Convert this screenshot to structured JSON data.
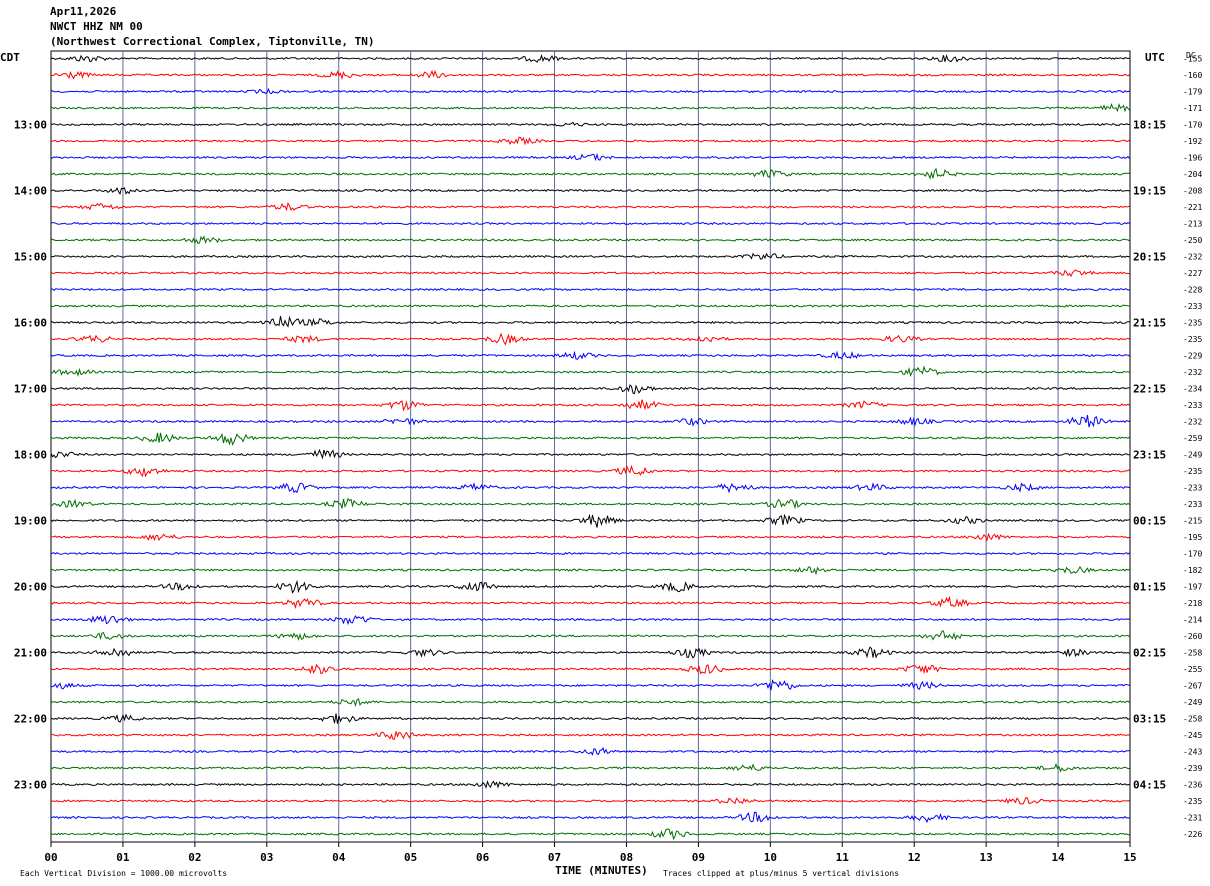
{
  "header": {
    "date": "Apr11,2026",
    "station": "NWCT HHZ NM 00",
    "location": "(Northwest Correctional Complex, Tiptonville, TN)"
  },
  "left_timezone": "CDT",
  "right_timezone": "UTC",
  "dc_label": "DC",
  "footer": {
    "scale_note": "Each Vertical Division = 1000.00 microvolts",
    "x_axis_label": "TIME (MINUTES)",
    "clip_note": "Traces clipped at plus/minus 5 vertical divisions"
  },
  "chart_data": {
    "type": "line",
    "description_of_axes": "helicorder",
    "x_tick_labels": [
      "00",
      "01",
      "02",
      "03",
      "04",
      "05",
      "06",
      "07",
      "08",
      "09",
      "10",
      "11",
      "12",
      "13",
      "14",
      "15"
    ],
    "x_range_minutes": [
      0,
      15
    ],
    "trace_colors": [
      "#000000",
      "#ff0000",
      "#0000ff",
      "#007000"
    ],
    "grid": true,
    "left_hour_labels": [
      {
        "row": 4,
        "label": "13:00"
      },
      {
        "row": 8,
        "label": "14:00"
      },
      {
        "row": 12,
        "label": "15:00"
      },
      {
        "row": 16,
        "label": "16:00"
      },
      {
        "row": 20,
        "label": "17:00"
      },
      {
        "row": 24,
        "label": "18:00"
      },
      {
        "row": 28,
        "label": "19:00"
      },
      {
        "row": 32,
        "label": "20:00"
      },
      {
        "row": 36,
        "label": "21:00"
      },
      {
        "row": 40,
        "label": "22:00"
      },
      {
        "row": 44,
        "label": "23:00"
      }
    ],
    "right_hour_labels": [
      {
        "row": 4,
        "label": "18:15"
      },
      {
        "row": 8,
        "label": "19:15"
      },
      {
        "row": 12,
        "label": "20:15"
      },
      {
        "row": 16,
        "label": "21:15"
      },
      {
        "row": 20,
        "label": "22:15"
      },
      {
        "row": 24,
        "label": "23:15"
      },
      {
        "row": 28,
        "label": "00:15"
      },
      {
        "row": 32,
        "label": "01:15"
      },
      {
        "row": 36,
        "label": "02:15"
      },
      {
        "row": 40,
        "label": "03:15"
      },
      {
        "row": 44,
        "label": "04:15"
      }
    ],
    "dc_offsets": [
      -155,
      -160,
      -179,
      -171,
      -170,
      -192,
      -196,
      -204,
      -208,
      -221,
      -213,
      -250,
      -232,
      -227,
      -228,
      -233,
      -235,
      -235,
      -229,
      -232,
      -234,
      -233,
      -232,
      -259,
      -249,
      -235,
      -233,
      -233,
      -215,
      -195,
      -170,
      -182,
      -197,
      -218,
      -214,
      -260,
      -258,
      -255,
      -267,
      -249,
      -258,
      -245,
      -243,
      -239,
      -236,
      -235,
      -231,
      -226
    ],
    "bursts": [
      [
        0,
        0.5,
        1
      ],
      [
        0,
        6.8,
        1
      ],
      [
        0,
        12.5,
        1
      ],
      [
        1,
        0.3,
        1
      ],
      [
        1,
        4.0,
        1
      ],
      [
        1,
        5.3,
        1
      ],
      [
        2,
        3.0,
        0.5
      ],
      [
        3,
        14.8,
        1
      ],
      [
        4,
        7.2,
        0.5
      ],
      [
        5,
        6.5,
        1
      ],
      [
        6,
        7.5,
        1
      ],
      [
        7,
        10.0,
        1.2
      ],
      [
        7,
        12.3,
        1.5
      ],
      [
        8,
        1.0,
        1
      ],
      [
        9,
        0.7,
        1
      ],
      [
        9,
        3.3,
        1
      ],
      [
        11,
        2.1,
        1
      ],
      [
        12,
        9.9,
        1
      ],
      [
        13,
        14.2,
        1
      ],
      [
        16,
        3.2,
        2
      ],
      [
        16,
        3.7,
        1
      ],
      [
        17,
        0.6,
        1
      ],
      [
        17,
        3.5,
        1
      ],
      [
        17,
        6.3,
        1.5
      ],
      [
        17,
        9.1,
        1
      ],
      [
        17,
        11.8,
        1
      ],
      [
        18,
        7.3,
        1
      ],
      [
        18,
        11.0,
        1
      ],
      [
        19,
        0.3,
        1
      ],
      [
        19,
        12.1,
        1.5
      ],
      [
        20,
        8.1,
        1.5
      ],
      [
        21,
        4.9,
        1.5
      ],
      [
        21,
        8.2,
        1.5
      ],
      [
        21,
        11.3,
        1
      ],
      [
        22,
        4.9,
        1
      ],
      [
        22,
        8.9,
        1
      ],
      [
        22,
        12.0,
        1
      ],
      [
        22,
        14.4,
        2
      ],
      [
        23,
        1.5,
        1.5
      ],
      [
        23,
        2.5,
        2
      ],
      [
        24,
        0.1,
        1
      ],
      [
        24,
        3.8,
        1.5
      ],
      [
        25,
        1.3,
        1.5
      ],
      [
        25,
        8.1,
        1.5
      ],
      [
        26,
        3.4,
        1.5
      ],
      [
        26,
        5.9,
        1
      ],
      [
        26,
        9.5,
        1.5
      ],
      [
        26,
        11.4,
        1
      ],
      [
        26,
        13.5,
        1
      ],
      [
        27,
        0.3,
        1
      ],
      [
        27,
        4.1,
        1.5
      ],
      [
        27,
        10.2,
        1.5
      ],
      [
        28,
        7.6,
        2
      ],
      [
        28,
        10.2,
        1.5
      ],
      [
        28,
        12.7,
        1
      ],
      [
        29,
        1.5,
        1
      ],
      [
        29,
        13.0,
        1
      ],
      [
        31,
        10.6,
        1
      ],
      [
        31,
        14.2,
        1
      ],
      [
        32,
        1.8,
        1
      ],
      [
        32,
        3.4,
        2
      ],
      [
        32,
        5.9,
        1.5
      ],
      [
        32,
        8.7,
        1.5
      ],
      [
        33,
        3.5,
        1.5
      ],
      [
        33,
        12.5,
        1.5
      ],
      [
        34,
        0.8,
        1.5
      ],
      [
        34,
        4.2,
        1.5
      ],
      [
        35,
        0.8,
        1
      ],
      [
        35,
        3.4,
        1
      ],
      [
        35,
        12.4,
        1.5
      ],
      [
        36,
        0.9,
        1.5
      ],
      [
        36,
        5.2,
        1
      ],
      [
        36,
        8.9,
        1.5
      ],
      [
        36,
        11.4,
        1.5
      ],
      [
        36,
        14.2,
        1
      ],
      [
        37,
        3.7,
        1.5
      ],
      [
        37,
        9.1,
        1.5
      ],
      [
        37,
        12.1,
        1.5
      ],
      [
        38,
        0.1,
        1
      ],
      [
        38,
        10.1,
        2
      ],
      [
        38,
        12.1,
        1
      ],
      [
        39,
        4.2,
        1
      ],
      [
        40,
        1.0,
        1
      ],
      [
        40,
        4.0,
        1.5
      ],
      [
        41,
        4.8,
        1.5
      ],
      [
        42,
        7.6,
        1
      ],
      [
        43,
        9.7,
        1
      ],
      [
        43,
        14.0,
        1
      ],
      [
        44,
        6.1,
        1
      ],
      [
        45,
        9.5,
        1
      ],
      [
        45,
        13.5,
        1
      ],
      [
        46,
        9.8,
        1.5
      ],
      [
        46,
        12.2,
        1.2
      ],
      [
        47,
        8.6,
        1.5
      ]
    ]
  }
}
